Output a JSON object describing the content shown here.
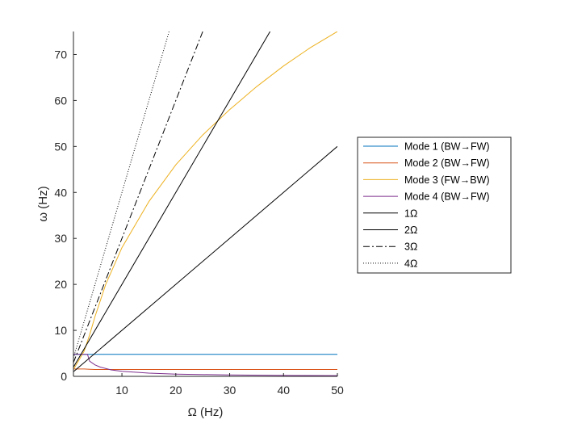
{
  "chart_data": {
    "type": "line",
    "xlabel": "Ω (Hz)",
    "ylabel": "ω (Hz)",
    "xlim": [
      1,
      50
    ],
    "ylim": [
      0,
      75
    ],
    "xticks": [
      10,
      20,
      30,
      40,
      50
    ],
    "yticks": [
      0,
      10,
      20,
      30,
      40,
      50,
      60,
      70
    ],
    "grid": false,
    "legend_position": "outside-right",
    "series": [
      {
        "name": "Mode 1 (BW→FW)",
        "color": "#0072BD",
        "style": "solid",
        "x": [
          1,
          2,
          3,
          4,
          5,
          7,
          10,
          15,
          20,
          30,
          40,
          50
        ],
        "y": [
          4.8,
          4.8,
          4.8,
          4.8,
          4.8,
          4.8,
          4.8,
          4.8,
          4.8,
          4.8,
          4.8,
          4.8
        ]
      },
      {
        "name": "Mode 2 (BW→FW)",
        "color": "#D95319",
        "style": "solid",
        "x": [
          1,
          2,
          3,
          4,
          5,
          7,
          10,
          15,
          20,
          30,
          40,
          50
        ],
        "y": [
          1.6,
          1.6,
          1.6,
          1.55,
          1.5,
          1.5,
          1.5,
          1.5,
          1.5,
          1.5,
          1.5,
          1.5
        ]
      },
      {
        "name": "Mode 3 (FW→BW)",
        "color": "#EDB120",
        "style": "solid",
        "x": [
          1,
          2,
          3,
          4,
          5,
          7,
          10,
          15,
          20,
          25,
          30,
          35,
          40,
          45,
          50
        ],
        "y": [
          1.5,
          3.5,
          5.5,
          9,
          13,
          20,
          28,
          38,
          46,
          52.5,
          58,
          63,
          67.5,
          71.5,
          75
        ]
      },
      {
        "name": "Mode 4 (BW→FW)",
        "color": "#7E2F8E",
        "style": "solid",
        "x": [
          1,
          2,
          3,
          3.6,
          4,
          5,
          6,
          8,
          10,
          15,
          20,
          30,
          40,
          50
        ],
        "y": [
          4.8,
          4.8,
          4.8,
          4.8,
          3.3,
          2.5,
          2.0,
          1.4,
          1.1,
          0.7,
          0.5,
          0.3,
          0.2,
          0.15
        ]
      },
      {
        "name": "1Ω",
        "color": "#000000",
        "style": "solid",
        "x": [
          1,
          50
        ],
        "y": [
          1,
          50
        ]
      },
      {
        "name": "2Ω",
        "color": "#000000",
        "style": "solid",
        "x": [
          1,
          37.5
        ],
        "y": [
          2,
          75
        ]
      },
      {
        "name": "3Ω",
        "color": "#000000",
        "style": "dashdot",
        "x": [
          1,
          25
        ],
        "y": [
          3,
          75
        ]
      },
      {
        "name": "4Ω",
        "color": "#000000",
        "style": "dotted",
        "x": [
          1,
          18.75
        ],
        "y": [
          4,
          75
        ]
      }
    ]
  }
}
